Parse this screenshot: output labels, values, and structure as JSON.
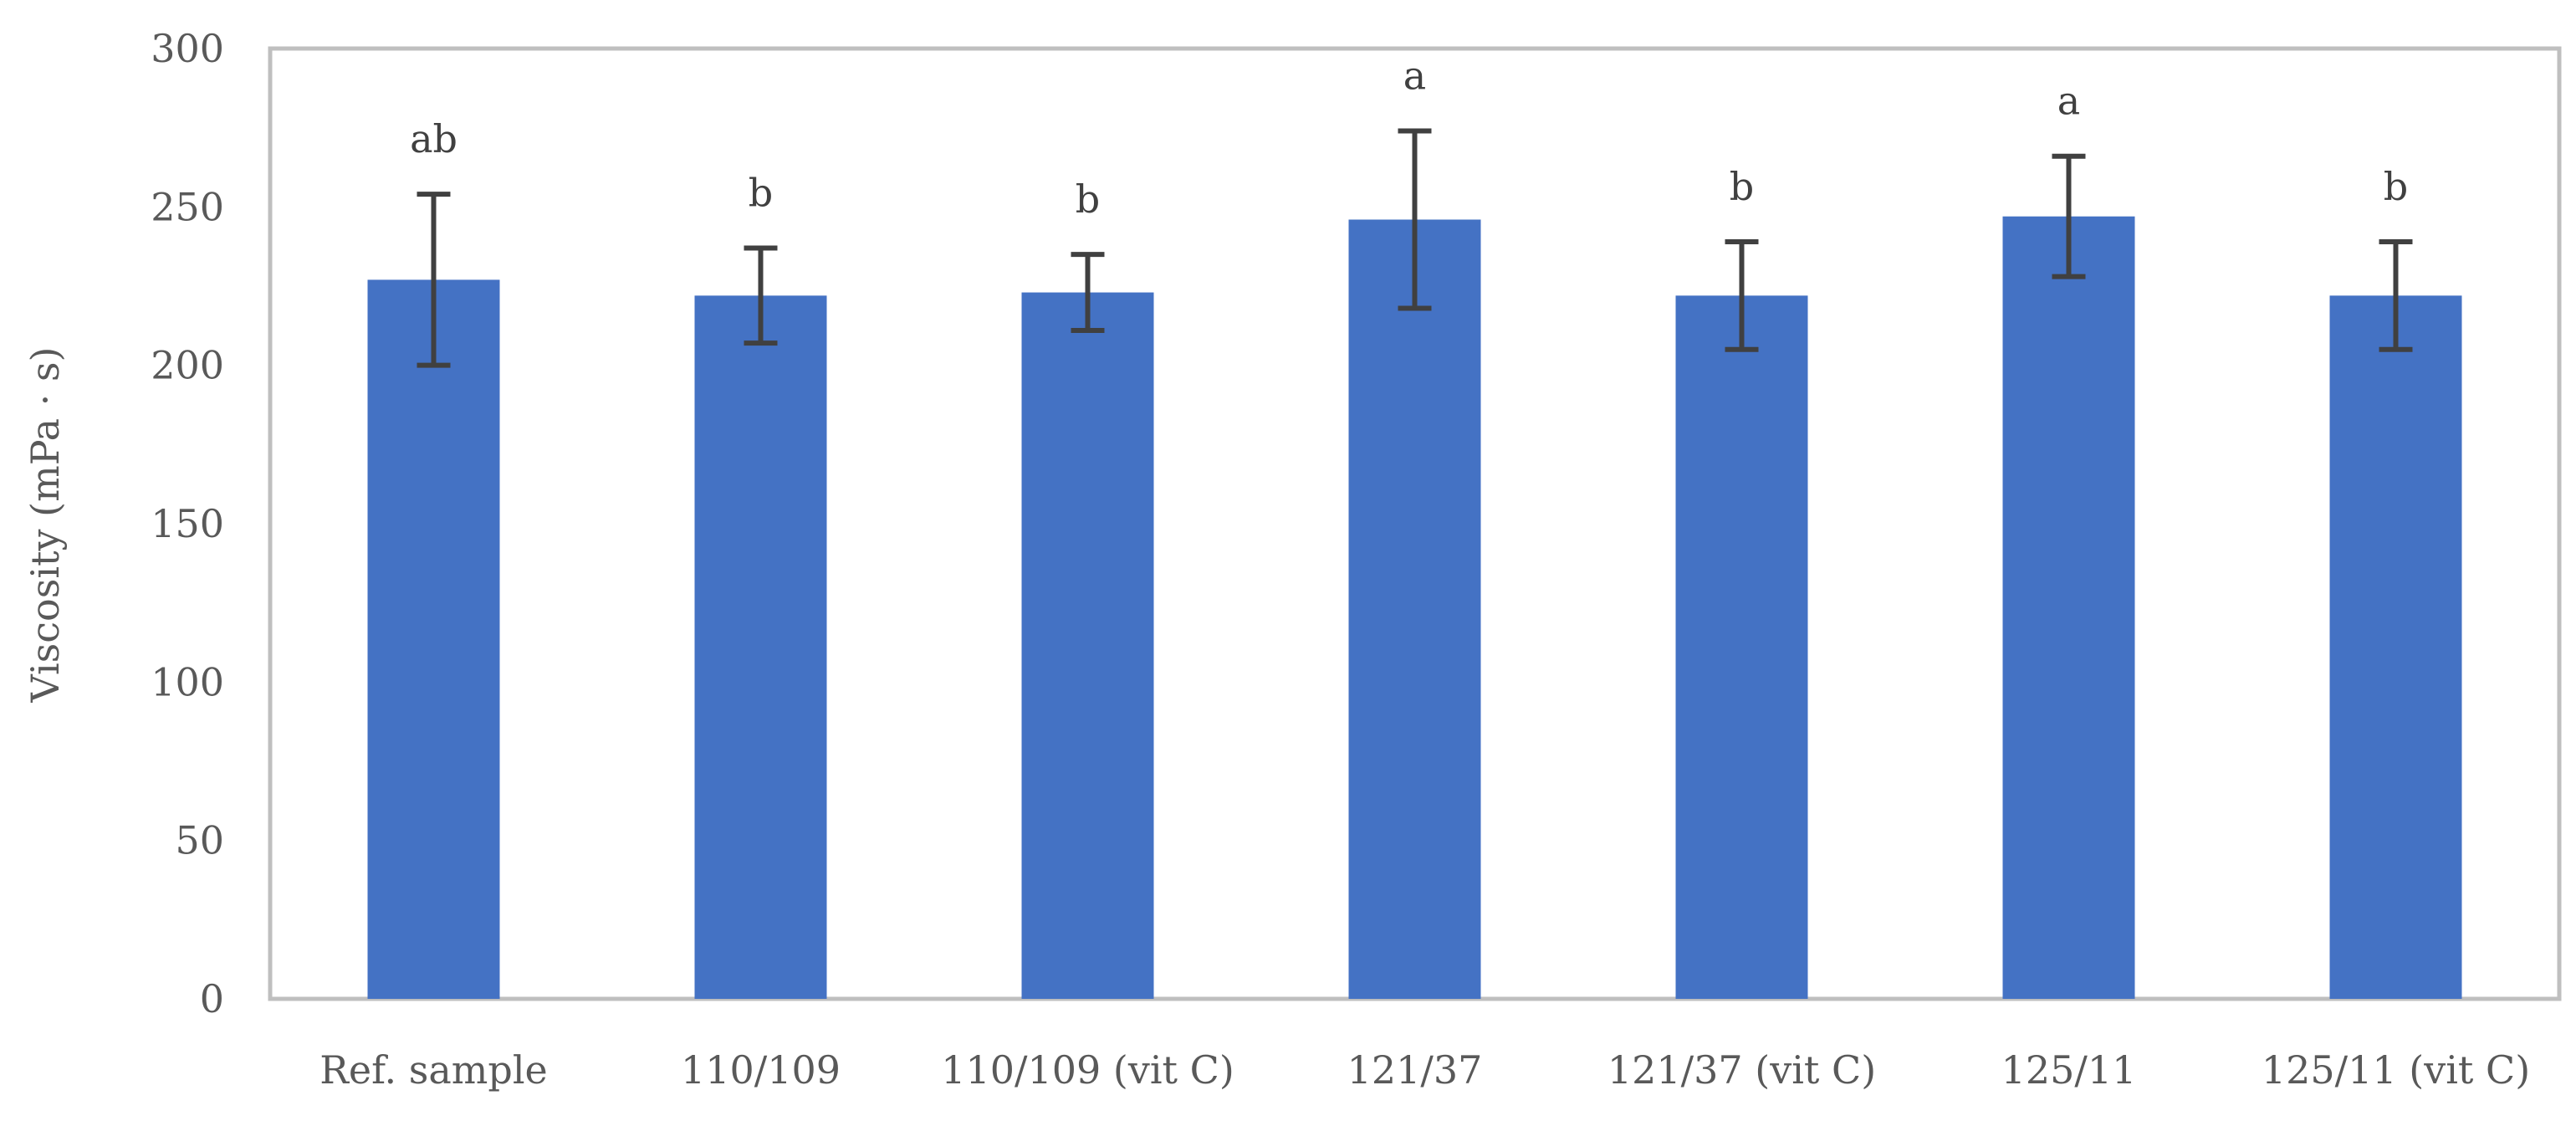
{
  "chart_data": {
    "type": "bar",
    "title": "",
    "xlabel": "",
    "ylabel": "Viscosity (mPa · s)",
    "ylim": [
      0,
      300
    ],
    "yticks": [
      0,
      50,
      100,
      150,
      200,
      250,
      300
    ],
    "grid": false,
    "legend": "none",
    "categories": [
      "Ref. sample",
      "110/109",
      "110/109 (vit C)",
      "121/37",
      "121/37 (vit C)",
      "125/11",
      "125/11 (vit C)"
    ],
    "values": [
      227,
      222,
      223,
      246,
      222,
      247,
      222
    ],
    "errors": [
      27,
      15,
      12,
      28,
      17,
      19,
      17
    ],
    "significance_labels": [
      "ab",
      "b",
      "b",
      "a",
      "b",
      "a",
      "b"
    ],
    "colors": {
      "bar": "#4472C4",
      "error_bar": "#404040",
      "plot_border": "#BFBFBF",
      "text": "#595959"
    }
  }
}
